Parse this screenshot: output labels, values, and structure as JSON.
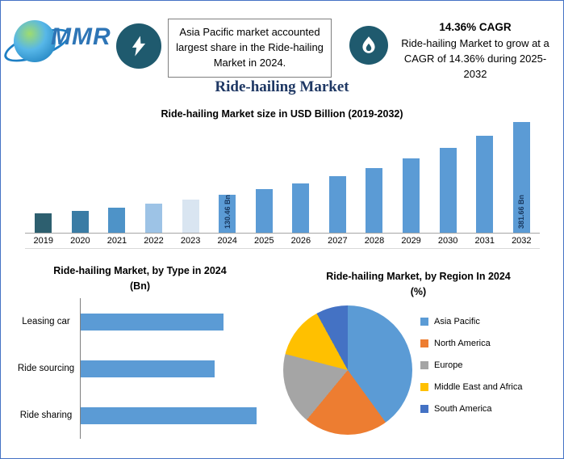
{
  "page": {
    "border_color": "#4472c4",
    "background": "#ffffff"
  },
  "header": {
    "logo": {
      "text": "MMR"
    },
    "highlight_left": {
      "icon": "lightning-icon",
      "text": "Asia Pacific market accounted largest share in the Ride-hailing Market in 2024."
    },
    "highlight_right": {
      "icon": "flame-icon",
      "cagr_value": "14.36% CAGR",
      "text": "Ride-hailing Market to grow at a CAGR of 14.36% during 2025-2032"
    }
  },
  "title": "Ride-hailing Market",
  "chart_data": [
    {
      "type": "bar",
      "title": "Ride-hailing Market size in USD Billion (2019-2032)",
      "categories": [
        "2019",
        "2020",
        "2021",
        "2022",
        "2023",
        "2024",
        "2025",
        "2026",
        "2027",
        "2028",
        "2029",
        "2030",
        "2031",
        "2032"
      ],
      "values": [
        66.7,
        76.3,
        87.2,
        99.8,
        114.1,
        130.46,
        149.2,
        170.6,
        195.1,
        223.1,
        255.1,
        291.8,
        333.7,
        381.66
      ],
      "unit": "USD Bn",
      "value_note": "Only 2024 (130.46 Bn) and 2032 (381.66 Bn) are labeled in the chart; other values estimated from the 14.36% CAGR",
      "point_labels": {
        "2024": "130.46 Bn",
        "2032": "381.66 Bn"
      },
      "bar_colors": [
        "#2d5f6f",
        "#3a7ca5",
        "#4e93c8",
        "#9dc3e6",
        "#d9e5f1",
        "#5b9bd5",
        "#5b9bd5",
        "#5b9bd5",
        "#5b9bd5",
        "#5b9bd5",
        "#5b9bd5",
        "#5b9bd5",
        "#5b9bd5",
        "#5b9bd5"
      ],
      "ylim": [
        0,
        400
      ],
      "xlabel": "",
      "ylabel": "",
      "grid": false
    },
    {
      "type": "bar",
      "orientation": "horizontal",
      "title": "Ride-hailing Market, by Type in 2024",
      "subtitle": "(Bn)",
      "categories": [
        "Leasing car",
        "Ride sourcing",
        "Ride sharing"
      ],
      "values": [
        81,
        76,
        100
      ],
      "value_note": "No numeric labels shown; values are relative bar lengths as % of longest bar",
      "bar_color": "#5b9bd5",
      "grid": false
    },
    {
      "type": "pie",
      "title": "Ride-hailing Market, by Region In 2024",
      "subtitle": "(%)",
      "labels": [
        "Asia Pacific",
        "North America",
        "Europe",
        "Middle East and Africa",
        "South America"
      ],
      "values": [
        40,
        21,
        18,
        13,
        8
      ],
      "value_note": "No numeric labels shown; shares estimated from slice angles",
      "colors": [
        "#5b9bd5",
        "#ed7d31",
        "#a5a5a5",
        "#ffc000",
        "#4472c4"
      ],
      "legend_position": "right",
      "start_angle_deg": 0,
      "direction": "clockwise"
    }
  ]
}
